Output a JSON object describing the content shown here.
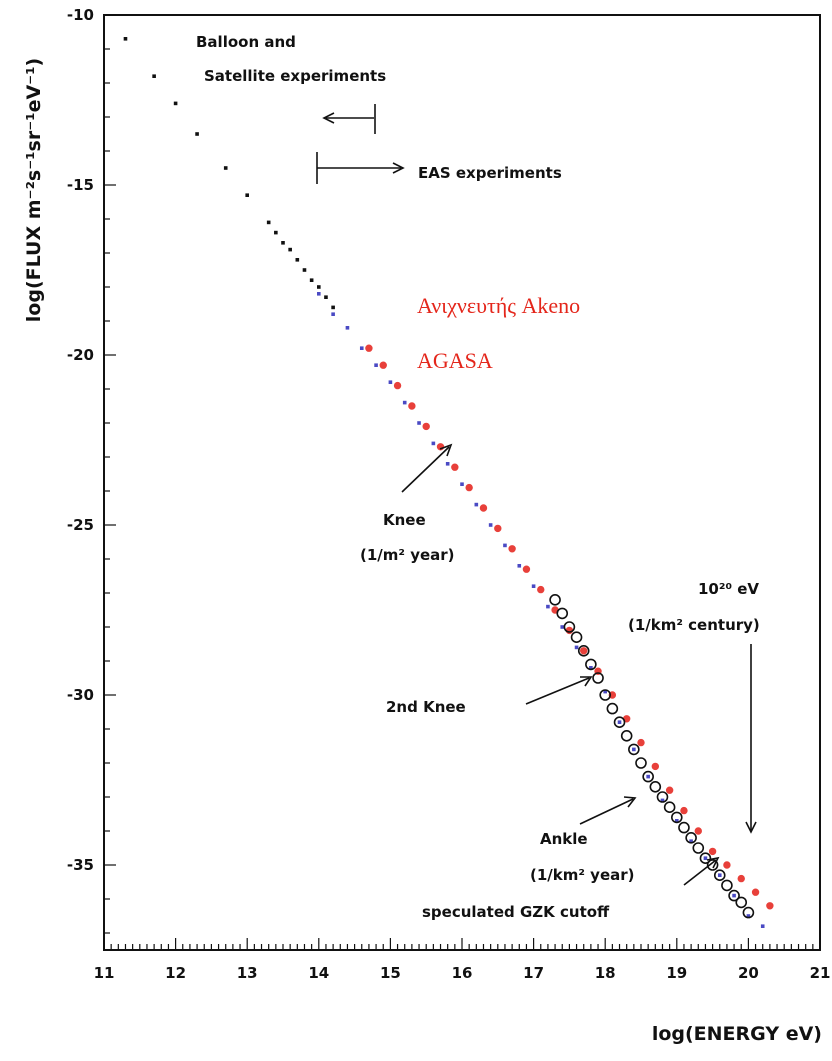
{
  "chart_data": {
    "type": "scatter",
    "title": "",
    "xlabel": "log(ENERGY  eV)",
    "ylabel": "log(FLUX  m⁻²s⁻¹sr⁻¹eV⁻¹)",
    "xlim": [
      11,
      21
    ],
    "ylim": [
      -37.5,
      -10
    ],
    "x_ticks": [
      "11",
      "12",
      "13",
      "14",
      "15",
      "16",
      "17",
      "18",
      "19",
      "20",
      "21"
    ],
    "y_ticks": [
      "-10",
      "-15",
      "-20",
      "-25",
      "-30",
      "-35"
    ],
    "x_tick_values": [
      11,
      12,
      13,
      14,
      15,
      16,
      17,
      18,
      19,
      20,
      21
    ],
    "y_tick_values": [
      -10,
      -15,
      -20,
      -25,
      -30,
      -35
    ],
    "grid": false,
    "series": [
      {
        "name": "",
        "color": "#111111",
        "marker": "small-square",
        "x": [
          11.3,
          11.7,
          12.0,
          12.3,
          12.7,
          13.0,
          13.3,
          13.4,
          13.5,
          13.6,
          13.7,
          13.8,
          13.9,
          14.0,
          14.1,
          14.2
        ],
        "y": [
          -10.7,
          -11.8,
          -12.6,
          -13.5,
          -14.5,
          -15.3,
          -16.1,
          -16.4,
          -16.7,
          -16.9,
          -17.2,
          -17.5,
          -17.8,
          -18.0,
          -18.3,
          -18.6
        ]
      },
      {
        "name": "",
        "color": "#4a4ac4",
        "marker": "small-square",
        "x": [
          14.0,
          14.2,
          14.4,
          14.6,
          14.8,
          15.0,
          15.2,
          15.4,
          15.6,
          15.8,
          16.0,
          16.2,
          16.4,
          16.6,
          16.8,
          17.0,
          17.2,
          17.4,
          17.6,
          17.8,
          18.0,
          18.2,
          18.4,
          18.6,
          18.8,
          19.0,
          19.2,
          19.4,
          19.6,
          19.8,
          20.0,
          20.2
        ],
        "y": [
          -18.2,
          -18.8,
          -19.2,
          -19.8,
          -20.3,
          -20.8,
          -21.4,
          -22.0,
          -22.6,
          -23.2,
          -23.8,
          -24.4,
          -25.0,
          -25.6,
          -26.2,
          -26.8,
          -27.4,
          -28.0,
          -28.6,
          -29.2,
          -29.9,
          -30.8,
          -31.6,
          -32.4,
          -33.1,
          -33.7,
          -34.3,
          -34.8,
          -35.3,
          -35.9,
          -36.5,
          -36.8
        ]
      },
      {
        "name": "",
        "color": "#e8403a",
        "marker": "circle",
        "x": [
          14.7,
          14.9,
          15.1,
          15.3,
          15.5,
          15.7,
          15.9,
          16.1,
          16.3,
          16.5,
          16.7,
          16.9,
          17.1,
          17.3,
          17.5,
          17.7,
          17.9,
          18.1,
          18.3,
          18.5,
          18.7,
          18.9,
          19.1,
          19.3,
          19.5,
          19.7,
          19.9,
          20.1,
          20.3
        ],
        "y": [
          -19.8,
          -20.3,
          -20.9,
          -21.5,
          -22.1,
          -22.7,
          -23.3,
          -23.9,
          -24.5,
          -25.1,
          -25.7,
          -26.3,
          -26.9,
          -27.5,
          -28.1,
          -28.7,
          -29.3,
          -30.0,
          -30.7,
          -31.4,
          -32.1,
          -32.8,
          -33.4,
          -34.0,
          -34.6,
          -35.0,
          -35.4,
          -35.8,
          -36.2
        ]
      },
      {
        "name": "",
        "color": "#111111",
        "marker": "open-circle",
        "x": [
          17.3,
          17.4,
          17.5,
          17.6,
          17.7,
          17.8,
          17.9,
          18.0,
          18.1,
          18.2,
          18.3,
          18.4,
          18.5,
          18.6,
          18.7,
          18.8,
          18.9,
          19.0,
          19.1,
          19.2,
          19.3,
          19.4,
          19.5,
          19.6,
          19.7,
          19.8,
          19.9,
          20.0
        ],
        "y": [
          -27.2,
          -27.6,
          -28.0,
          -28.3,
          -28.7,
          -29.1,
          -29.5,
          -30.0,
          -30.4,
          -30.8,
          -31.2,
          -31.6,
          -32.0,
          -32.4,
          -32.7,
          -33.0,
          -33.3,
          -33.6,
          -33.9,
          -34.2,
          -34.5,
          -34.8,
          -35.0,
          -35.3,
          -35.6,
          -35.9,
          -36.1,
          -36.4
        ]
      }
    ],
    "annotations": {
      "balloon_line1": "Balloon and",
      "balloon_line2": "Satellite experiments",
      "eas": "EAS experiments",
      "knee_line1": "Knee",
      "knee_line2": "(1/m² year)",
      "energy_1020_line1": "10²⁰ eV",
      "energy_1020_line2": "(1/km² century)",
      "second_knee": "2nd Knee",
      "ankle_line1": "Ankle",
      "ankle_line2": "(1/km² year)",
      "gzk": "speculated GZK cutoff",
      "akeno": "Ανιχνευτής Akeno",
      "agasa": "AGASA"
    }
  }
}
